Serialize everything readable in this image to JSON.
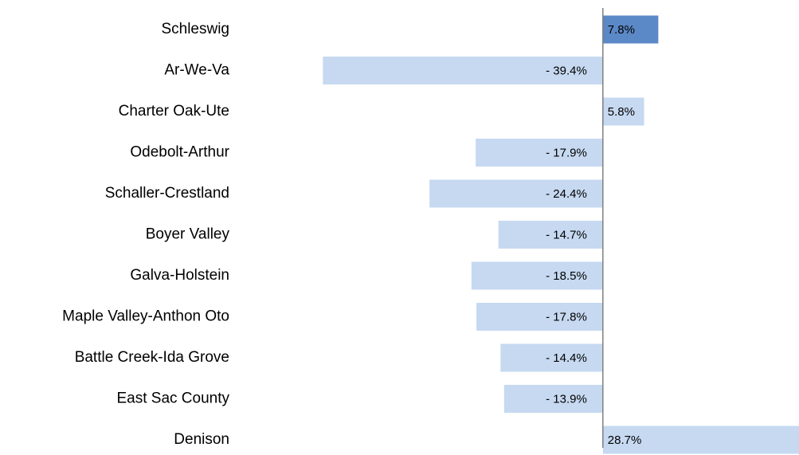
{
  "chart_data": {
    "type": "barh",
    "categories": [
      "Schleswig",
      "Ar-We-Va",
      "Charter Oak-Ute",
      "Odebolt-Arthur",
      "Schaller-Crestland",
      "Boyer Valley",
      "Galva-Holstein",
      "Maple Valley-Anthon Oto",
      "Battle Creek-Ida Grove",
      "East Sac County",
      "Denison"
    ],
    "values": [
      7.8,
      -39.4,
      5.8,
      -17.9,
      -24.4,
      -14.7,
      -18.5,
      -17.8,
      -14.4,
      -13.9,
      28.7
    ],
    "value_labels": [
      "7.8%",
      "- 39.4%",
      "5.8%",
      "- 17.9%",
      "- 24.4%",
      "- 14.7%",
      "- 18.5%",
      "- 17.8%",
      "- 14.4%",
      "- 13.9%",
      "28.7%"
    ],
    "colors": [
      "#5b88c6",
      "#c6d9f1",
      "#c6d9f1",
      "#c6d9f1",
      "#c6d9f1",
      "#c6d9f1",
      "#c6d9f1",
      "#c6d9f1",
      "#c6d9f1",
      "#c6d9f1",
      "#c6d9f1"
    ],
    "xlim": [
      -40,
      27.6
    ]
  }
}
